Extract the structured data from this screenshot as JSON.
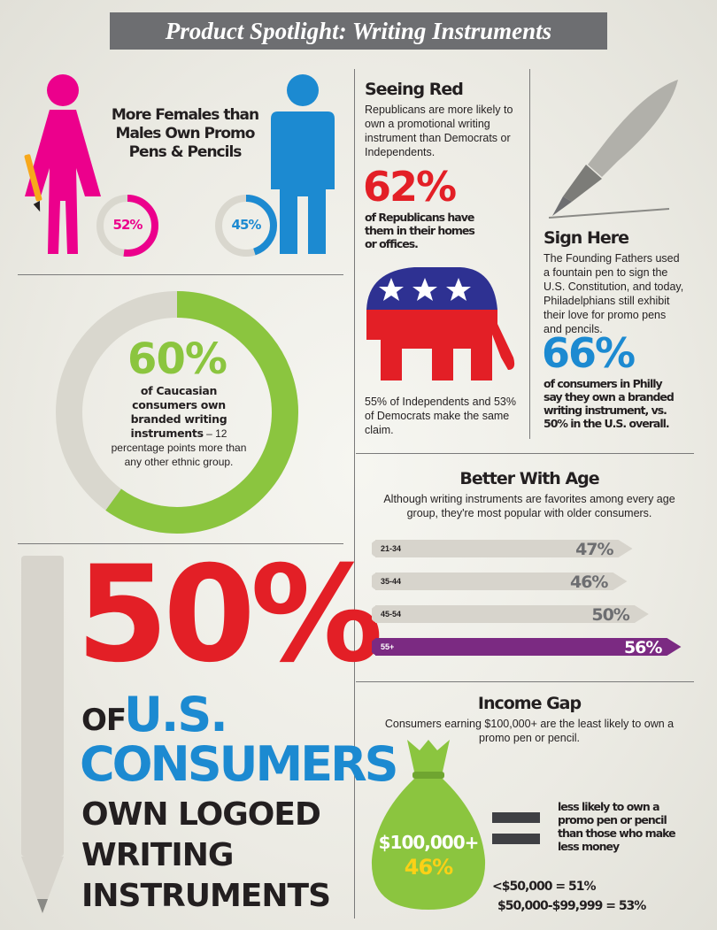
{
  "title": "Product Spotlight: Writing Instruments",
  "gender": {
    "heading": "More Females than Males Own Promo Pens & Pencils",
    "female_pct": "52%",
    "male_pct": "45%",
    "female_value": 52,
    "male_value": 45,
    "female_color": "#ec008c",
    "male_color": "#1c8ad1"
  },
  "caucasian": {
    "pct": "60%",
    "value": 60,
    "bold_text": "of Caucasian consumers own branded writing instruments",
    "rest_text": " – 12 percentage points more than any other ethnic group.",
    "ring_color": "#8bc53f"
  },
  "seeing_red": {
    "heading": "Seeing Red",
    "text": "Republicans are more likely to own a promotional writing instrument than Democrats or Independents.",
    "pct": "62%",
    "sub": "of Republicans have them in their homes or offices.",
    "footnote": "55% of Independents and 53% of Democrats make the same claim."
  },
  "sign_here": {
    "heading": "Sign Here",
    "text": "The Founding Fathers used a fountain pen to sign the U.S. Constitution, and today, Philadelphians still exhibit their love for promo pens and pencils.",
    "pct": "66%",
    "sub": "of consumers in Philly say they own a branded writing instrument, vs. 50% in the U.S. overall."
  },
  "fifty": {
    "pct": "50%",
    "of": "OF",
    "us": "U.S.",
    "consumers": "CONSUMERS",
    "line1": "OWN LOGOED",
    "line2": "WRITING",
    "line3": "INSTRUMENTS"
  },
  "age": {
    "heading": "Better With Age",
    "text": "Although writing instruments are favorites among every age group, they're most popular with older consumers."
  },
  "chart_data": {
    "type": "bar",
    "categories": [
      "21-34",
      "35-44",
      "45-54",
      "55+"
    ],
    "values": [
      47,
      46,
      50,
      56
    ],
    "value_labels": [
      "47%",
      "46%",
      "50%",
      "56%"
    ],
    "colors": [
      "#d7d4cc",
      "#d7d4cc",
      "#d7d4cc",
      "#7b2a82"
    ]
  },
  "income": {
    "heading": "Income Gap",
    "text": "Consumers earning $100,000+ are the least likely to own a promo pen or pencil.",
    "bag_amount": "$100,000+",
    "bag_pct": "46%",
    "equals_text": "less likely to own a promo pen or pencil than those who make less money",
    "line1": "<$50,000 = 51%",
    "line2": "$50,000-$99,999 = 53%"
  }
}
